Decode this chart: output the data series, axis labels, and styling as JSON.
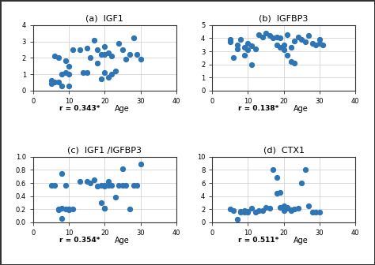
{
  "panels": [
    {
      "label": "(a)  IGF1",
      "r_text": "r = 0.343*",
      "xlabel": "Age",
      "ylim": [
        0,
        4
      ],
      "yticks": [
        0,
        1,
        2,
        3,
        4
      ],
      "xlim": [
        0,
        40
      ],
      "xticks": [
        0,
        10,
        20,
        30,
        40
      ],
      "x": [
        5,
        5,
        6,
        6,
        7,
        7,
        8,
        8,
        9,
        9,
        10,
        10,
        10,
        11,
        13,
        14,
        15,
        15,
        16,
        17,
        18,
        18,
        19,
        19,
        20,
        20,
        20,
        21,
        21,
        22,
        22,
        23,
        24,
        25,
        26,
        27,
        28,
        29,
        30
      ],
      "y": [
        0.6,
        0.4,
        2.1,
        0.5,
        2.0,
        0.5,
        1.0,
        0.3,
        1.8,
        1.1,
        1.0,
        1.5,
        0.3,
        2.5,
        2.5,
        1.1,
        2.6,
        1.1,
        2.0,
        3.1,
        2.5,
        1.7,
        2.2,
        0.7,
        2.2,
        1.1,
        2.7,
        2.3,
        0.8,
        2.1,
        1.0,
        1.2,
        2.9,
        2.5,
        1.9,
        2.2,
        3.2,
        2.2,
        1.9
      ]
    },
    {
      "label": "(b)  IGFBP3",
      "r_text": "r = 0.138*",
      "xlabel": "Age",
      "ylim": [
        0,
        5
      ],
      "yticks": [
        0,
        1,
        2,
        3,
        4,
        5
      ],
      "xlim": [
        0,
        40
      ],
      "xticks": [
        0,
        10,
        20,
        30,
        40
      ],
      "x": [
        5,
        5,
        6,
        7,
        7,
        8,
        9,
        9,
        10,
        10,
        11,
        11,
        12,
        13,
        14,
        15,
        16,
        17,
        18,
        18,
        19,
        19,
        20,
        20,
        21,
        21,
        22,
        22,
        23,
        23,
        24,
        25,
        26,
        27,
        28,
        29,
        30,
        30,
        31
      ],
      "y": [
        3.9,
        3.7,
        2.5,
        3.5,
        3.2,
        3.9,
        3.3,
        2.7,
        3.6,
        3.1,
        3.4,
        2.0,
        3.2,
        4.3,
        4.1,
        4.4,
        4.2,
        4.0,
        4.1,
        3.5,
        4.0,
        3.3,
        3.5,
        3.1,
        4.3,
        2.7,
        3.3,
        2.2,
        3.8,
        2.1,
        4.1,
        3.9,
        3.7,
        4.2,
        3.6,
        3.5,
        3.9,
        3.6,
        3.5
      ]
    },
    {
      "label": "(c)  IGF1 /IGFBP3",
      "r_text": "r = 0.354*",
      "xlabel": "Age",
      "ylim": [
        0,
        1
      ],
      "yticks": [
        0,
        0.2,
        0.4,
        0.6,
        0.8,
        1.0
      ],
      "xlim": [
        0,
        40
      ],
      "xticks": [
        0,
        10,
        20,
        30,
        40
      ],
      "x": [
        5,
        6,
        7,
        7,
        8,
        8,
        8,
        9,
        9,
        10,
        10,
        11,
        13,
        15,
        16,
        17,
        18,
        19,
        19,
        20,
        20,
        20,
        20,
        21,
        21,
        22,
        23,
        24,
        25,
        25,
        26,
        27,
        28,
        29,
        30
      ],
      "y": [
        0.57,
        0.57,
        0.2,
        0.19,
        0.21,
        0.75,
        0.06,
        0.2,
        0.57,
        0.2,
        0.19,
        0.2,
        0.62,
        0.62,
        0.6,
        0.65,
        0.55,
        0.57,
        0.3,
        0.22,
        0.22,
        0.55,
        0.57,
        0.62,
        0.57,
        0.57,
        0.38,
        0.57,
        0.57,
        0.82,
        0.57,
        0.2,
        0.57,
        0.57,
        0.89
      ]
    },
    {
      "label": "(d)  CTX1",
      "r_text": "r = 0.511*",
      "xlabel": "Age",
      "ylim": [
        0,
        10
      ],
      "yticks": [
        0,
        2,
        4,
        6,
        8,
        10
      ],
      "xlim": [
        0,
        40
      ],
      "xticks": [
        0,
        10,
        20,
        30,
        40
      ],
      "x": [
        5,
        6,
        7,
        8,
        8,
        9,
        9,
        10,
        10,
        11,
        12,
        13,
        14,
        15,
        16,
        17,
        18,
        18,
        19,
        19,
        20,
        20,
        20,
        21,
        21,
        22,
        22,
        23,
        24,
        25,
        26,
        27,
        28,
        29,
        30
      ],
      "y": [
        2.0,
        1.8,
        0.4,
        1.7,
        1.6,
        1.8,
        1.6,
        1.7,
        1.6,
        2.1,
        1.5,
        1.8,
        1.8,
        2.3,
        2.2,
        8.0,
        4.4,
        6.8,
        2.3,
        4.5,
        2.2,
        2.5,
        1.8,
        2.1,
        2.3,
        1.8,
        1.9,
        2.0,
        2.2,
        6.0,
        8.0,
        2.5,
        1.5,
        1.5,
        1.6
      ]
    }
  ],
  "dot_color": "#2E75B6",
  "dot_size": 18,
  "background_color": "#ffffff",
  "grid_color": "#cccccc",
  "border_color": "#333333"
}
